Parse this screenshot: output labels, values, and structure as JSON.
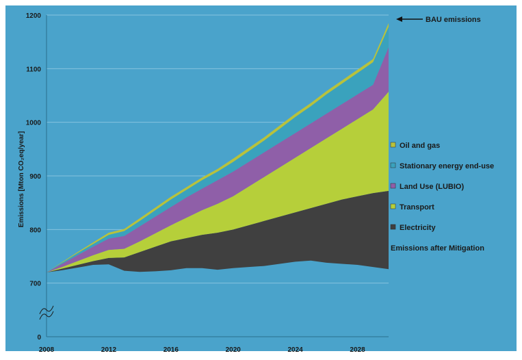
{
  "chart_data": {
    "type": "area",
    "title": "",
    "xlabel": "",
    "ylabel": "Emissions [Mton CO₂eq/year]",
    "x": [
      2008,
      2009,
      2010,
      2011,
      2012,
      2013,
      2014,
      2015,
      2016,
      2017,
      2018,
      2019,
      2020,
      2021,
      2022,
      2023,
      2024,
      2025,
      2026,
      2027,
      2028,
      2029,
      2030
    ],
    "xlim": [
      2008,
      2030
    ],
    "ylim": [
      600,
      1200
    ],
    "y_axis_break": true,
    "x_ticks": [
      "2008",
      "2012",
      "2016",
      "2020",
      "2024",
      "2028"
    ],
    "x_tick_values": [
      2008,
      2012,
      2016,
      2020,
      2024,
      2028
    ],
    "y_ticks": [
      "0",
      "700",
      "800",
      "900",
      "1000",
      "1100",
      "1200"
    ],
    "y_tick_values": [
      600,
      700,
      800,
      900,
      1000,
      1100,
      1200
    ],
    "grid": true,
    "legend_position": "right",
    "base": {
      "name": "Emissions after Mitigation",
      "values": [
        720,
        724,
        729,
        734,
        735,
        723,
        721,
        722,
        724,
        728,
        728,
        725,
        728,
        730,
        732,
        736,
        740,
        742,
        738,
        736,
        734,
        730,
        726
      ]
    },
    "series": [
      {
        "name": "Electricity",
        "color": "#404040",
        "values": [
          720,
          727,
          734,
          741,
          747,
          748,
          758,
          768,
          778,
          784,
          790,
          794,
          800,
          808,
          816,
          824,
          832,
          840,
          848,
          856,
          862,
          868,
          872
        ]
      },
      {
        "name": "Transport",
        "color": "#b6cf3a",
        "values": [
          720,
          730,
          741,
          752,
          762,
          764,
          778,
          793,
          808,
          822,
          836,
          848,
          862,
          880,
          898,
          916,
          934,
          952,
          970,
          988,
          1006,
          1024,
          1057
        ]
      },
      {
        "name": "Land Use (LUBIO)",
        "color": "#8f5fa8",
        "values": [
          720,
          736,
          752,
          768,
          783,
          788,
          806,
          824,
          842,
          860,
          876,
          892,
          908,
          926,
          944,
          962,
          980,
          998,
          1016,
          1034,
          1052,
          1070,
          1140
        ]
      },
      {
        "name": "Stationary energy end-use",
        "color": "#3aa2bd",
        "values": [
          720,
          738,
          756,
          773,
          790,
          797,
          816,
          836,
          856,
          874,
          892,
          908,
          926,
          946,
          966,
          988,
          1010,
          1030,
          1052,
          1072,
          1092,
          1112,
          1178
        ]
      },
      {
        "name": "Oil and gas",
        "color": "#b8c23c",
        "values": [
          720,
          739,
          758,
          776,
          794,
          801,
          821,
          841,
          861,
          879,
          897,
          913,
          932,
          952,
          972,
          994,
          1016,
          1036,
          1058,
          1078,
          1098,
          1118,
          1185
        ]
      }
    ],
    "legend_order": [
      "Oil and gas",
      "Stationary energy end-use",
      "Land Use (LUBIO)",
      "Transport",
      "Electricity",
      "Emissions after Mitigation"
    ],
    "annotation": {
      "text": "BAU emissions",
      "x": 2030,
      "y": 1185
    }
  },
  "colors": {
    "background": "#4aa3cb",
    "grid": "#86c3df",
    "text": "#1a1a1a"
  }
}
